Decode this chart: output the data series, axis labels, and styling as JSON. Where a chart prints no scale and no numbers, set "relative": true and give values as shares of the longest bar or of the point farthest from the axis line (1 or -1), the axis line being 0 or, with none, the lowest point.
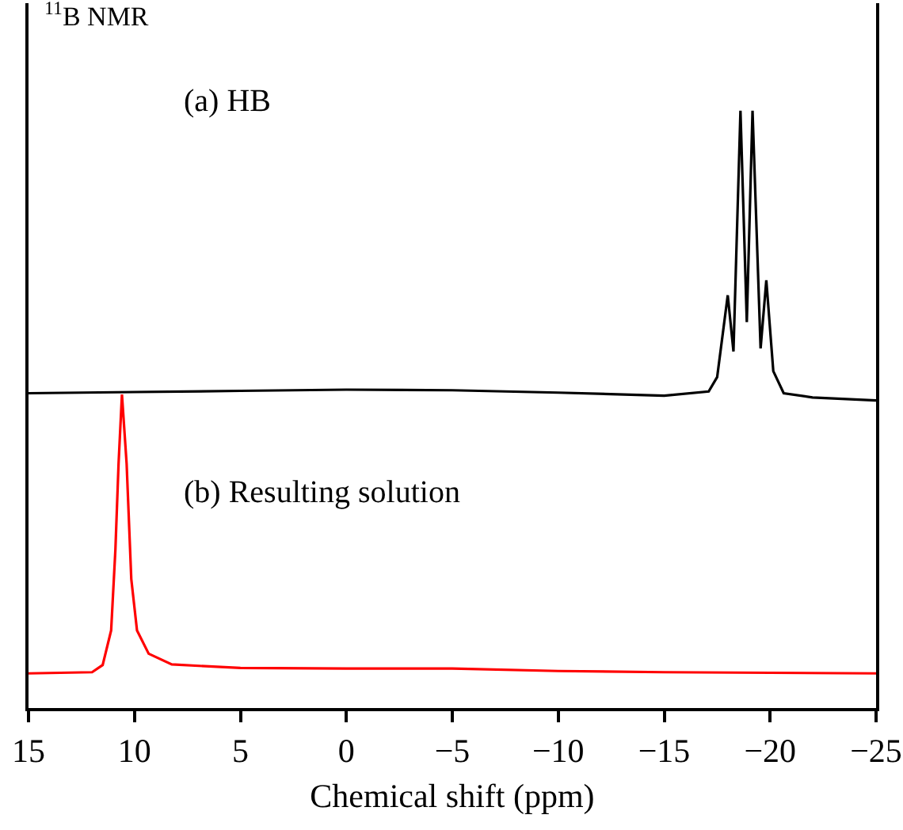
{
  "chart_data": {
    "type": "line",
    "relative": true,
    "xlabel": "Chemical shift (ppm)",
    "xlim": [
      15,
      -25
    ],
    "xticks": [
      15,
      10,
      5,
      0,
      -5,
      -10,
      -15,
      -20,
      -25
    ],
    "grid": false,
    "marker": "none",
    "line_style": "solid",
    "annotations": [
      "$^{11}$B NMR",
      "(a) HB",
      "(b) Resulting solution"
    ],
    "series": [
      {
        "color": "#000000",
        "x": [
          15,
          10,
          5,
          0,
          -5,
          -10,
          -15,
          -17.1,
          -17.5,
          -18.0,
          -18.27,
          -18.6,
          -18.9,
          -19.17,
          -19.55,
          -19.82,
          -20.15,
          -20.64,
          -22,
          -25
        ],
        "values": [
          0.527,
          0.529,
          0.531,
          0.533,
          0.532,
          0.528,
          0.523,
          0.53,
          0.554,
          0.691,
          0.597,
          1.0,
          0.646,
          1.0,
          0.602,
          0.716,
          0.564,
          0.527,
          0.52,
          0.515
        ]
      },
      {
        "color": "#ff0000",
        "x": [
          15,
          12,
          11.5,
          11.1,
          10.9,
          10.75,
          10.59,
          10.37,
          10.15,
          9.88,
          9.33,
          8.24,
          5,
          0,
          -5,
          -10,
          -15,
          -20,
          -25
        ],
        "values": [
          0.058,
          0.06,
          0.072,
          0.13,
          0.265,
          0.409,
          0.525,
          0.409,
          0.216,
          0.13,
          0.091,
          0.073,
          0.067,
          0.066,
          0.066,
          0.062,
          0.06,
          0.059,
          0.058
        ]
      }
    ]
  }
}
